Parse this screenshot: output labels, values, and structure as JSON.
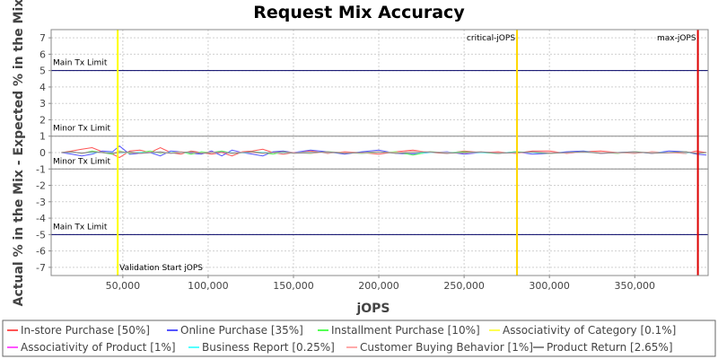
{
  "chart_data": {
    "type": "line",
    "title": "Request Mix Accuracy",
    "xlabel": "jOPS",
    "ylabel": "Actual % in the Mix - Expected % in the Mix",
    "xlim": [
      8000,
      393000
    ],
    "ylim": [
      -7.5,
      7.5
    ],
    "x_ticks": [
      {
        "value": 50000,
        "label": "50,000"
      },
      {
        "value": 100000,
        "label": "100,000"
      },
      {
        "value": 150000,
        "label": "150,000"
      },
      {
        "value": 200000,
        "label": "200,000"
      },
      {
        "value": 250000,
        "label": "250,000"
      },
      {
        "value": 300000,
        "label": "300,000"
      },
      {
        "value": 350000,
        "label": "350,000"
      }
    ],
    "y_ticks": [
      {
        "value": 7,
        "label": "7"
      },
      {
        "value": 6,
        "label": "6"
      },
      {
        "value": 5,
        "label": "5"
      },
      {
        "value": 4,
        "label": "4"
      },
      {
        "value": 3,
        "label": "3"
      },
      {
        "value": 2,
        "label": "2"
      },
      {
        "value": 1,
        "label": "1"
      },
      {
        "value": 0,
        "label": "0"
      },
      {
        "value": -1,
        "label": "-1"
      },
      {
        "value": -2,
        "label": "-2"
      },
      {
        "value": -3,
        "label": "-3"
      },
      {
        "value": -4,
        "label": "-4"
      },
      {
        "value": -5,
        "label": "-5"
      },
      {
        "value": -6,
        "label": "-6"
      },
      {
        "value": -7,
        "label": "-7"
      }
    ],
    "grid": true,
    "horizontal_limits": [
      {
        "value": 5,
        "label": "Main Tx Limit",
        "label_side": "above",
        "color": "#000066"
      },
      {
        "value": 1,
        "label": "Minor Tx Limit",
        "label_side": "above",
        "color": "#888888"
      },
      {
        "value": -1,
        "label": "Minor Tx Limit",
        "label_side": "above",
        "color": "#888888"
      },
      {
        "value": -5,
        "label": "Main Tx Limit",
        "label_side": "above",
        "color": "#000066"
      }
    ],
    "vertical_markers": [
      {
        "value": 47000,
        "label": "Validation Start jOPS",
        "label_position": "bottom-right",
        "color": "#ffff00"
      },
      {
        "value": 281000,
        "label": "critical-jOPS",
        "label_position": "top-left",
        "color": "#ffd700"
      },
      {
        "value": 387000,
        "label": "max-jOPS",
        "label_position": "top-left",
        "color": "#dd0000"
      }
    ],
    "legend_position": "bottom",
    "x": [
      14000,
      20000,
      26000,
      32000,
      38000,
      44000,
      48000,
      54000,
      60000,
      66000,
      72000,
      78000,
      84000,
      90000,
      96000,
      102000,
      108000,
      114000,
      120000,
      126000,
      132000,
      138000,
      144000,
      150000,
      160000,
      170000,
      180000,
      190000,
      200000,
      210000,
      220000,
      230000,
      240000,
      250000,
      260000,
      270000,
      280000,
      290000,
      300000,
      310000,
      320000,
      330000,
      340000,
      350000,
      360000,
      370000,
      380000,
      386000,
      392000
    ],
    "series": [
      {
        "name": "In-store Purchase [50%]",
        "color": "#ff5555",
        "values": [
          0.0,
          0.1,
          0.2,
          0.3,
          0.05,
          -0.1,
          -0.3,
          0.1,
          0.15,
          0.0,
          0.3,
          0.0,
          -0.1,
          0.1,
          0.0,
          -0.1,
          0.0,
          -0.2,
          0.05,
          0.1,
          0.2,
          0.0,
          -0.1,
          0.0,
          0.1,
          -0.05,
          0.05,
          0.0,
          -0.1,
          0.05,
          0.15,
          0.0,
          -0.05,
          0.1,
          0.0,
          0.05,
          -0.05,
          0.1,
          0.1,
          -0.05,
          0.05,
          0.1,
          0.0,
          -0.05,
          0.05,
          0.0,
          -0.05,
          0.1,
          0.0
        ]
      },
      {
        "name": "Online Purchase [35%]",
        "color": "#5555ff",
        "values": [
          0.0,
          -0.1,
          -0.2,
          -0.1,
          0.1,
          0.05,
          0.4,
          -0.1,
          -0.05,
          0.0,
          -0.2,
          0.1,
          0.05,
          -0.05,
          -0.1,
          0.1,
          -0.2,
          0.15,
          0.0,
          -0.1,
          -0.2,
          0.05,
          0.1,
          0.0,
          0.15,
          0.05,
          -0.1,
          0.05,
          0.15,
          -0.05,
          -0.1,
          0.0,
          0.05,
          -0.1,
          0.0,
          -0.05,
          0.05,
          -0.1,
          -0.05,
          0.05,
          0.1,
          -0.05,
          0.0,
          0.05,
          -0.05,
          0.1,
          0.05,
          -0.1,
          -0.15
        ]
      },
      {
        "name": "Installment Purchase [10%]",
        "color": "#55ff55",
        "values": [
          0.0,
          0.05,
          -0.05,
          0.1,
          0.0,
          -0.1,
          0.1,
          -0.05,
          0.0,
          0.1,
          -0.05,
          0.0,
          0.05,
          -0.1,
          0.05,
          0.0,
          0.1,
          -0.05,
          0.0,
          0.05,
          0.0,
          -0.1,
          0.05,
          0.0,
          -0.05,
          0.05,
          0.0,
          -0.05,
          0.0,
          0.05,
          -0.15,
          0.05,
          0.0,
          0.05,
          0.0,
          -0.05,
          0.05,
          0.0,
          -0.05,
          0.0,
          0.05,
          0.0,
          -0.05,
          0.05,
          0.0,
          0.0,
          0.05,
          -0.05,
          0.0
        ]
      },
      {
        "name": "Associativity of Category [0.1%]",
        "color": "#ffff55",
        "values": [
          0.0,
          0.0,
          0.0,
          0.0,
          0.0,
          0.0,
          0.0,
          0.0,
          0.0,
          0.0,
          0.0,
          0.0,
          0.0,
          0.0,
          0.0,
          0.0,
          0.0,
          0.0,
          0.0,
          0.0,
          0.0,
          0.0,
          0.0,
          0.0,
          0.0,
          0.0,
          0.0,
          0.0,
          0.0,
          0.0,
          0.0,
          0.0,
          0.0,
          0.0,
          0.0,
          0.0,
          0.0,
          0.0,
          0.0,
          0.0,
          0.0,
          0.0,
          0.0,
          0.0,
          0.0,
          0.0,
          0.0,
          0.0,
          0.0
        ]
      },
      {
        "name": "Associativity of Product [1%]",
        "color": "#ff55ff",
        "values": [
          0.0,
          0.02,
          -0.02,
          0.03,
          0.0,
          -0.02,
          0.05,
          0.0,
          -0.03,
          0.02,
          0.0,
          -0.02,
          0.03,
          0.0,
          -0.02,
          0.02,
          0.0,
          -0.02,
          0.02,
          0.0,
          -0.02,
          0.0,
          0.02,
          0.0,
          -0.02,
          0.02,
          0.0,
          -0.02,
          0.02,
          0.0,
          -0.02,
          0.02,
          0.0,
          -0.02,
          0.02,
          0.0,
          -0.02,
          0.02,
          0.0,
          -0.02,
          0.02,
          0.0,
          -0.02,
          0.02,
          0.0,
          -0.02,
          0.02,
          0.0,
          0.0
        ]
      },
      {
        "name": "Business Report [0.25%]",
        "color": "#55ffff",
        "values": [
          0.0,
          0.01,
          -0.01,
          0.0,
          0.01,
          0.0,
          -0.01,
          0.0,
          0.01,
          0.0,
          -0.01,
          0.0,
          0.01,
          0.0,
          -0.01,
          0.0,
          0.01,
          0.0,
          -0.01,
          0.0,
          0.01,
          0.0,
          -0.01,
          0.0,
          0.01,
          0.0,
          -0.01,
          0.0,
          0.01,
          0.0,
          -0.01,
          0.0,
          0.01,
          0.0,
          -0.01,
          0.0,
          0.01,
          0.0,
          -0.01,
          0.0,
          0.01,
          0.0,
          -0.01,
          0.0,
          0.01,
          0.0,
          -0.01,
          0.0,
          0.0
        ]
      },
      {
        "name": "Customer Buying Behavior [1%]",
        "color": "#ffaaaa",
        "values": [
          0.0,
          0.03,
          -0.03,
          0.05,
          0.0,
          -0.03,
          0.05,
          0.0,
          -0.05,
          0.03,
          0.0,
          -0.03,
          0.05,
          0.0,
          -0.03,
          0.03,
          0.0,
          -0.03,
          0.03,
          0.0,
          -0.03,
          0.0,
          0.03,
          0.0,
          -0.03,
          0.03,
          0.0,
          -0.03,
          0.03,
          0.0,
          0.1,
          0.03,
          0.0,
          -0.03,
          0.03,
          0.0,
          -0.03,
          0.03,
          0.0,
          -0.03,
          0.03,
          0.0,
          -0.03,
          0.03,
          0.0,
          -0.03,
          0.03,
          0.0,
          0.0
        ]
      },
      {
        "name": "Product Return [2.65%]",
        "color": "#888888",
        "values": [
          0.0,
          0.05,
          -0.05,
          0.05,
          0.0,
          -0.05,
          0.0,
          0.05,
          -0.05,
          0.0,
          0.05,
          -0.05,
          0.0,
          0.05,
          -0.05,
          0.0,
          0.05,
          -0.05,
          0.0,
          0.05,
          -0.05,
          0.0,
          0.05,
          -0.05,
          0.0,
          0.05,
          -0.05,
          0.0,
          0.05,
          -0.05,
          0.0,
          0.05,
          -0.05,
          0.0,
          0.05,
          -0.05,
          0.0,
          0.05,
          -0.05,
          0.0,
          0.05,
          -0.05,
          0.0,
          0.05,
          -0.05,
          0.0,
          0.05,
          -0.05,
          0.0
        ]
      }
    ]
  }
}
